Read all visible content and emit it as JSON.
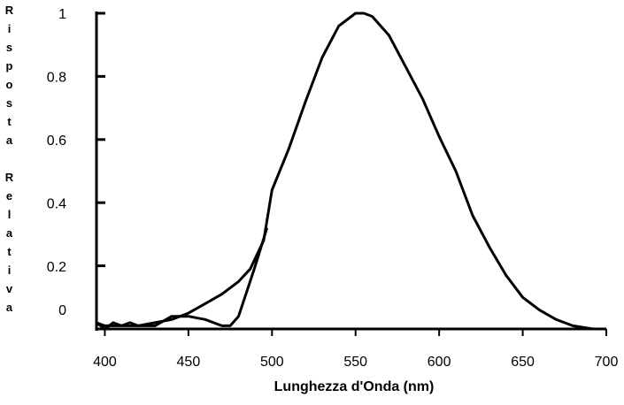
{
  "chart_data": {
    "type": "line",
    "x_label": "Lunghezza d'Onda (nm)",
    "y_label": "Risposta Relativa",
    "xlim": [
      395,
      700
    ],
    "xticks": [
      400,
      450,
      500,
      550,
      600,
      650,
      700
    ],
    "ylim": [
      0,
      1
    ],
    "yticks": [
      0,
      0.2,
      0.4,
      0.6,
      0.8,
      1
    ],
    "series": [
      {
        "color": "#000000",
        "x": [
          395,
          400,
          410,
          420,
          430,
          440,
          450,
          460,
          470,
          480,
          487,
          495,
          500,
          510,
          520,
          530,
          540,
          550,
          555,
          560,
          570,
          580,
          590,
          600,
          610,
          620,
          630,
          640,
          650,
          660,
          670,
          680,
          692
        ],
        "values": [
          0.02,
          0.01,
          0.01,
          0.01,
          0.02,
          0.03,
          0.05,
          0.08,
          0.11,
          0.15,
          0.19,
          0.28,
          0.44,
          0.57,
          0.72,
          0.86,
          0.96,
          1.0,
          1.0,
          0.99,
          0.93,
          0.83,
          0.73,
          0.61,
          0.5,
          0.36,
          0.26,
          0.17,
          0.1,
          0.06,
          0.03,
          0.01,
          0.0
        ]
      },
      {
        "color": "#000000",
        "x": [
          395,
          400,
          405,
          410,
          415,
          420,
          430,
          440,
          450,
          460,
          470,
          475,
          480,
          485,
          490,
          497
        ],
        "values": [
          0.02,
          0.0,
          0.02,
          0.01,
          0.02,
          0.01,
          0.01,
          0.04,
          0.04,
          0.03,
          0.01,
          0.01,
          0.04,
          0.12,
          0.2,
          0.32
        ]
      }
    ]
  }
}
